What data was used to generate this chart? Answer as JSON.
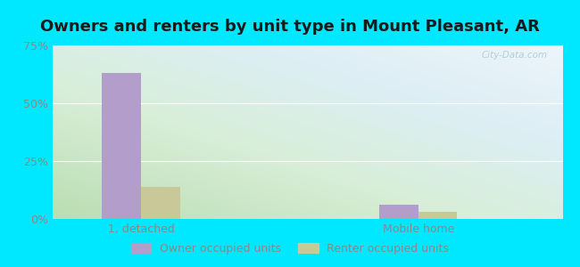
{
  "title": "Owners and renters by unit type in Mount Pleasant, AR",
  "title_fontsize": 13,
  "categories": [
    "1, detached",
    "Mobile home"
  ],
  "owner_values": [
    63,
    6
  ],
  "renter_values": [
    14,
    3
  ],
  "owner_color": "#b39dca",
  "renter_color": "#c8c898",
  "ylim": [
    0,
    75
  ],
  "yticks": [
    0,
    25,
    50,
    75
  ],
  "yticklabels": [
    "0%",
    "25%",
    "50%",
    "75%"
  ],
  "bar_width": 0.35,
  "background_outer": "#00e8ff",
  "grid_color": "#ffffff",
  "legend_labels": [
    "Owner occupied units",
    "Renter occupied units"
  ],
  "watermark": "City-Data.com",
  "group_positions": [
    1.0,
    3.5
  ],
  "xlabel_color": "#888888",
  "tick_color": "#888888"
}
